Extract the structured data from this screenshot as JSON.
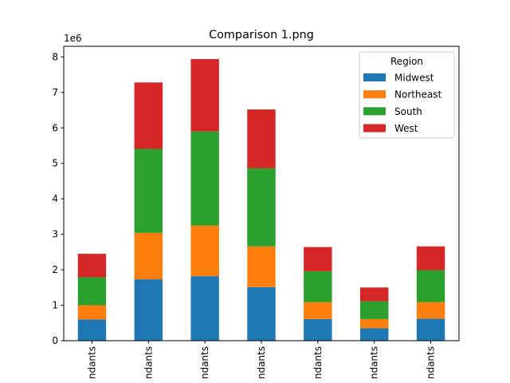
{
  "chart_data": {
    "type": "bar",
    "stacked": true,
    "title": "Comparison 1.png",
    "xlabel": "",
    "ylabel": "",
    "y_offset_label": "1e6",
    "ylim": [
      0,
      8.3
    ],
    "yticks": [
      0,
      1,
      2,
      3,
      4,
      5,
      6,
      7,
      8
    ],
    "categories": [
      "ndants",
      "ndants",
      "ndants",
      "ndants",
      "ndants",
      "ndants",
      "ndants"
    ],
    "series": [
      {
        "name": "Midwest",
        "color": "#1f77b4",
        "values": [
          0.6,
          1.73,
          1.82,
          1.51,
          0.61,
          0.35,
          0.62
        ]
      },
      {
        "name": "Northeast",
        "color": "#ff7f0e",
        "values": [
          0.4,
          1.31,
          1.43,
          1.15,
          0.48,
          0.26,
          0.47
        ]
      },
      {
        "name": "South",
        "color": "#2ca02c",
        "values": [
          0.79,
          2.37,
          2.65,
          2.2,
          0.87,
          0.5,
          0.9
        ]
      },
      {
        "name": "West",
        "color": "#d62728",
        "values": [
          0.66,
          1.87,
          2.04,
          1.66,
          0.68,
          0.39,
          0.67
        ]
      }
    ],
    "legend": {
      "title": "Region",
      "placement": "top-right"
    },
    "grid": false
  }
}
